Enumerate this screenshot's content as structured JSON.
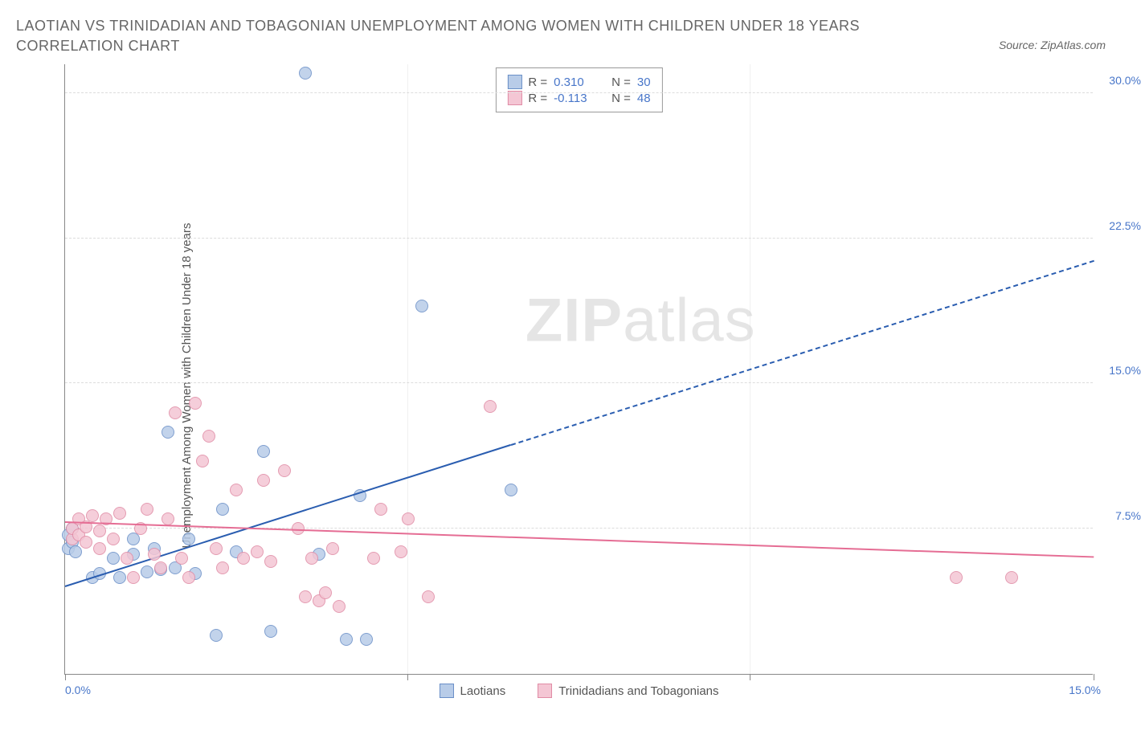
{
  "title": "LAOTIAN VS TRINIDADIAN AND TOBAGONIAN UNEMPLOYMENT AMONG WOMEN WITH CHILDREN UNDER 18 YEARS CORRELATION CHART",
  "source": "Source: ZipAtlas.com",
  "y_axis_label": "Unemployment Among Women with Children Under 18 years",
  "watermark_bold": "ZIP",
  "watermark_light": "atlas",
  "chart": {
    "type": "scatter",
    "xlim": [
      0,
      15
    ],
    "ylim": [
      0,
      31.5
    ],
    "x_tick_left": "0.0%",
    "x_tick_right": "15.0%",
    "x_tick_positions_pct": [
      0,
      33.3,
      66.6,
      100
    ],
    "y_ticks": [
      7.5,
      15.0,
      22.5,
      30.0
    ],
    "y_tick_labels": [
      "7.5%",
      "15.0%",
      "22.5%",
      "30.0%"
    ],
    "axis_label_color": "#4876c9",
    "grid_color": "#dddddd",
    "series": [
      {
        "name": "Laotians",
        "fill": "#b8cce8",
        "stroke": "#6a8fc7",
        "trend_color": "#2a5db0",
        "trend_solid": {
          "x1": 0,
          "y1": 4.5,
          "x2": 6.5,
          "y2": 11.8
        },
        "trend_dashed": {
          "x1": 6.5,
          "y1": 11.8,
          "x2": 15,
          "y2": 21.3
        },
        "points": [
          [
            0.05,
            6.5
          ],
          [
            0.05,
            7.2
          ],
          [
            0.1,
            6.8
          ],
          [
            0.1,
            7.5
          ],
          [
            0.15,
            6.3
          ],
          [
            0.4,
            5.0
          ],
          [
            0.5,
            5.2
          ],
          [
            0.7,
            6.0
          ],
          [
            0.8,
            5.0
          ],
          [
            1.0,
            6.2
          ],
          [
            1.0,
            7.0
          ],
          [
            1.2,
            5.3
          ],
          [
            1.3,
            6.5
          ],
          [
            1.4,
            5.4
          ],
          [
            1.5,
            12.5
          ],
          [
            1.6,
            5.5
          ],
          [
            1.8,
            7.0
          ],
          [
            1.9,
            5.2
          ],
          [
            2.2,
            2.0
          ],
          [
            2.3,
            8.5
          ],
          [
            2.5,
            6.3
          ],
          [
            2.9,
            11.5
          ],
          [
            3.0,
            2.2
          ],
          [
            3.5,
            31.0
          ],
          [
            3.7,
            6.2
          ],
          [
            4.1,
            1.8
          ],
          [
            4.3,
            9.2
          ],
          [
            4.4,
            1.8
          ],
          [
            5.2,
            19.0
          ],
          [
            6.5,
            9.5
          ]
        ]
      },
      {
        "name": "Trinidadians and Tobagonians",
        "fill": "#f4c6d4",
        "stroke": "#e08ba5",
        "trend_color": "#e56d94",
        "trend_solid": {
          "x1": 0,
          "y1": 7.8,
          "x2": 15,
          "y2": 6.0
        },
        "points": [
          [
            0.1,
            7.0
          ],
          [
            0.1,
            7.5
          ],
          [
            0.2,
            8.0
          ],
          [
            0.2,
            7.2
          ],
          [
            0.3,
            7.6
          ],
          [
            0.3,
            6.8
          ],
          [
            0.4,
            8.2
          ],
          [
            0.5,
            7.4
          ],
          [
            0.5,
            6.5
          ],
          [
            0.6,
            8.0
          ],
          [
            0.7,
            7.0
          ],
          [
            0.8,
            8.3
          ],
          [
            0.9,
            6.0
          ],
          [
            1.0,
            5.0
          ],
          [
            1.1,
            7.5
          ],
          [
            1.2,
            8.5
          ],
          [
            1.3,
            6.2
          ],
          [
            1.4,
            5.5
          ],
          [
            1.5,
            8.0
          ],
          [
            1.6,
            13.5
          ],
          [
            1.7,
            6.0
          ],
          [
            1.8,
            5.0
          ],
          [
            1.9,
            14.0
          ],
          [
            2.0,
            11.0
          ],
          [
            2.1,
            12.3
          ],
          [
            2.2,
            6.5
          ],
          [
            2.3,
            5.5
          ],
          [
            2.5,
            9.5
          ],
          [
            2.6,
            6.0
          ],
          [
            2.8,
            6.3
          ],
          [
            2.9,
            10.0
          ],
          [
            3.0,
            5.8
          ],
          [
            3.2,
            10.5
          ],
          [
            3.4,
            7.5
          ],
          [
            3.5,
            4.0
          ],
          [
            3.6,
            6.0
          ],
          [
            3.7,
            3.8
          ],
          [
            3.8,
            4.2
          ],
          [
            3.9,
            6.5
          ],
          [
            4.0,
            3.5
          ],
          [
            4.5,
            6.0
          ],
          [
            4.6,
            8.5
          ],
          [
            4.9,
            6.3
          ],
          [
            5.0,
            8.0
          ],
          [
            5.3,
            4.0
          ],
          [
            6.2,
            13.8
          ],
          [
            13.0,
            5.0
          ],
          [
            13.8,
            5.0
          ]
        ]
      }
    ],
    "stats": [
      {
        "swatch_fill": "#b8cce8",
        "swatch_stroke": "#6a8fc7",
        "r_label": "R =",
        "r": "0.310",
        "n_label": "N =",
        "n": "30"
      },
      {
        "swatch_fill": "#f4c6d4",
        "swatch_stroke": "#e08ba5",
        "r_label": "R =",
        "r": "-0.113",
        "n_label": "N =",
        "n": "48"
      }
    ],
    "legend": [
      {
        "swatch_fill": "#b8cce8",
        "swatch_stroke": "#6a8fc7",
        "label": "Laotians"
      },
      {
        "swatch_fill": "#f4c6d4",
        "swatch_stroke": "#e08ba5",
        "label": "Trinidadians and Tobagonians"
      }
    ]
  }
}
